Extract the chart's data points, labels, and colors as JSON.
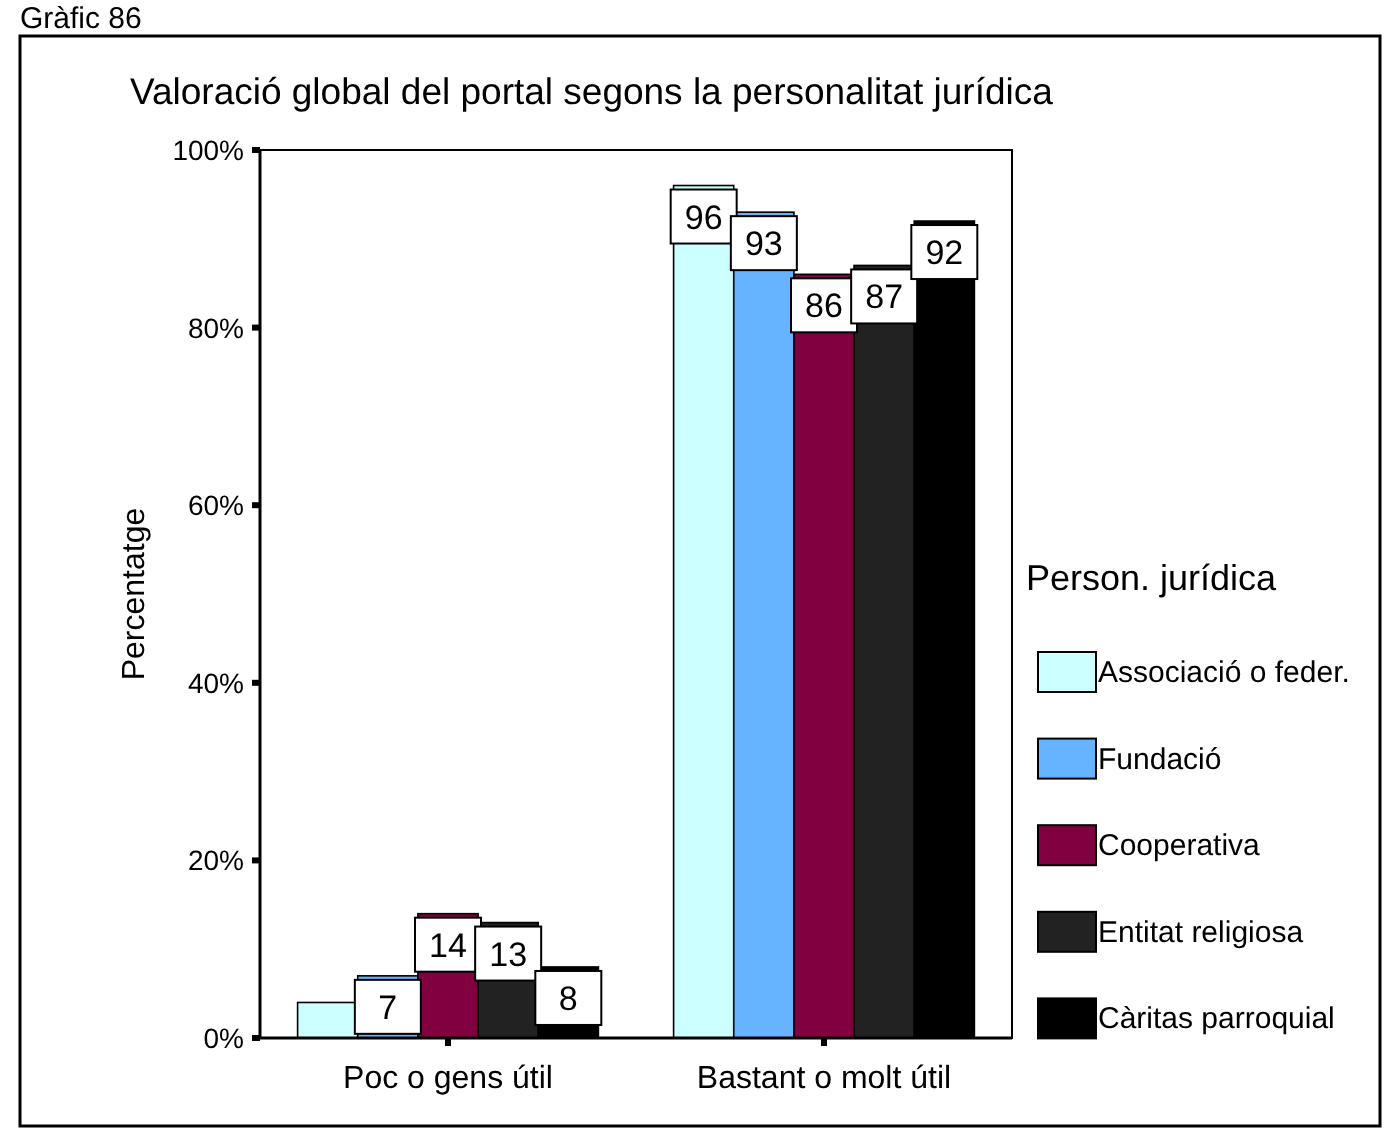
{
  "chart_data": {
    "type": "bar",
    "title": "Valoració global del portal segons la personalitat jurídica",
    "ylabel": "Percentatge",
    "legend_title": "Person. jurídica",
    "legend": "right",
    "annotations": [
      "Gràfic 86"
    ],
    "categories": [
      "Poc o gens útil",
      "Bastant o molt útil"
    ],
    "series": [
      {
        "name": "Associació o feder.",
        "color": "#ccffff",
        "values": [
          4,
          96
        ],
        "value_labels": [
          null,
          "96"
        ]
      },
      {
        "name": "Fundació",
        "color": "#66b3ff",
        "values": [
          7,
          93
        ],
        "value_labels": [
          "7",
          "93"
        ]
      },
      {
        "name": "Cooperativa",
        "color": "#800040",
        "values": [
          14,
          86
        ],
        "value_labels": [
          "14",
          "86"
        ]
      },
      {
        "name": "Entitat religiosa",
        "color": "#222222",
        "values": [
          13,
          87
        ],
        "value_labels": [
          "13",
          "87"
        ]
      },
      {
        "name": "Càritas parroquial",
        "color": "#000000",
        "values": [
          8,
          92
        ],
        "value_labels": [
          "8",
          "92"
        ]
      }
    ],
    "ylim": [
      0,
      100
    ],
    "yticks": [
      {
        "value": 0,
        "label": "0%"
      },
      {
        "value": 20,
        "label": "20%"
      },
      {
        "value": 40,
        "label": "40%"
      },
      {
        "value": 60,
        "label": "60%"
      },
      {
        "value": 80,
        "label": "80%"
      },
      {
        "value": 100,
        "label": "100%"
      }
    ]
  }
}
